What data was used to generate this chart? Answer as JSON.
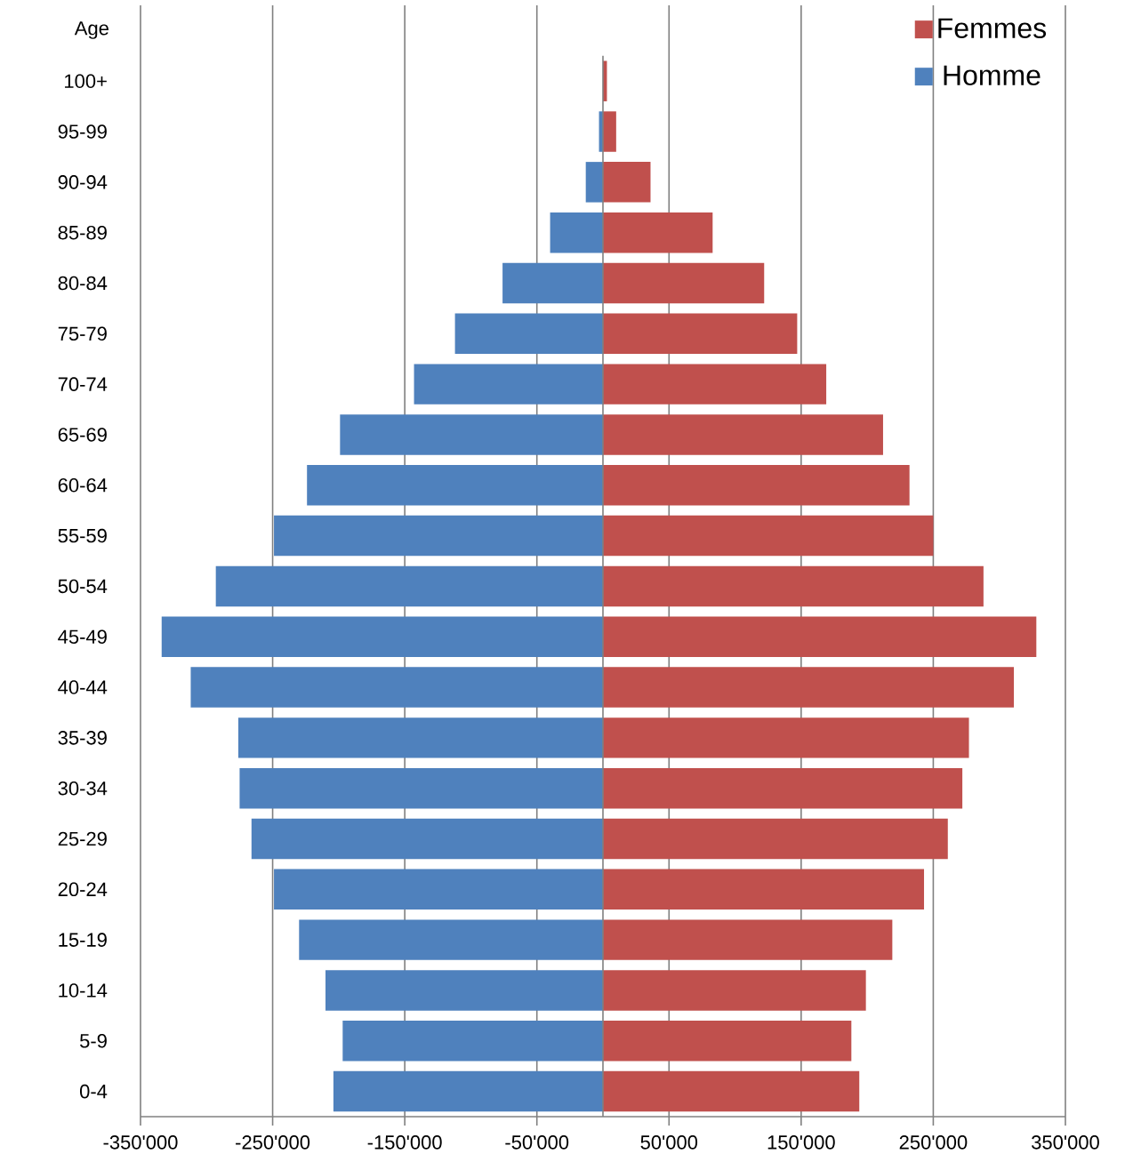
{
  "chart_data": {
    "type": "bar",
    "orientation": "horizontal",
    "ylabel": "Age",
    "categories": [
      "100+",
      "95-99",
      "90-94",
      "85-89",
      "80-84",
      "75-79",
      "70-74",
      "65-69",
      "60-64",
      "55-59",
      "50-54",
      "45-49",
      "40-44",
      "35-39",
      "30-34",
      "25-29",
      "20-24",
      "15-19",
      "10-14",
      "5-9",
      "0-4"
    ],
    "series": [
      {
        "name": "Femmes",
        "color": "#c0504d",
        "values": [
          3000,
          10000,
          36000,
          83000,
          122000,
          147000,
          169000,
          212000,
          232000,
          250000,
          288000,
          328000,
          311000,
          277000,
          272000,
          261000,
          243000,
          219000,
          199000,
          188000,
          194000
        ]
      },
      {
        "name": "Homme",
        "color": "#4f81bd",
        "values": [
          null,
          -3000,
          -13000,
          -40000,
          -76000,
          -112000,
          -143000,
          -199000,
          -224000,
          -249000,
          -293000,
          -334000,
          -312000,
          -276000,
          -275000,
          -266000,
          -249000,
          -230000,
          -210000,
          -197000,
          -204000
        ]
      }
    ],
    "xlim": [
      -350000,
      350000
    ],
    "xticks": [
      {
        "value": -350000,
        "label": "-350'000"
      },
      {
        "value": -250000,
        "label": "-250'000"
      },
      {
        "value": -150000,
        "label": "-150'000"
      },
      {
        "value": -50000,
        "label": "-50'000"
      },
      {
        "value": 50000,
        "label": "50'000"
      },
      {
        "value": 150000,
        "label": "150'000"
      },
      {
        "value": 250000,
        "label": "250'000"
      },
      {
        "value": 350000,
        "label": "350'000"
      }
    ],
    "grid": "x",
    "legend": "top right",
    "stacked": true
  }
}
